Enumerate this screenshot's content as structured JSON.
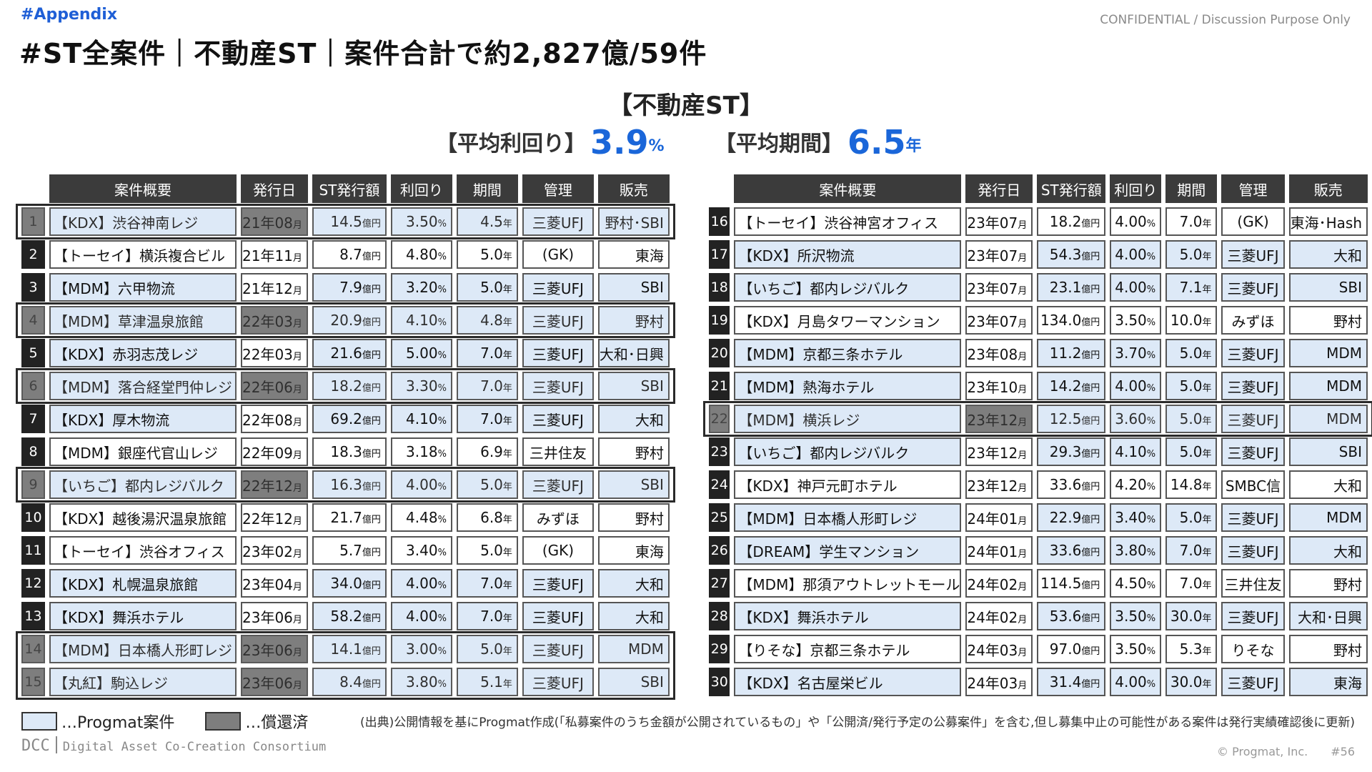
{
  "header": {
    "tag": "#Appendix",
    "confidential": "CONFIDENTIAL / Discussion Purpose Only",
    "title": "#ST全案件｜不動産ST｜案件合計で約2,827億/59件",
    "subtitle": "【不動産ST】",
    "avg_yield_label": "【平均利回り】",
    "avg_yield_value": "3.9",
    "avg_yield_unit": "%",
    "avg_term_label": "【平均期間】",
    "avg_term_value": "6.5",
    "avg_term_unit": "年"
  },
  "columns": [
    "案件概要",
    "発行日",
    "ST発行額",
    "利回り",
    "期間",
    "管理",
    "販売"
  ],
  "units": {
    "month": "月",
    "year": "年",
    "amount": "億円",
    "percent": "%"
  },
  "rows": [
    {
      "no": "1",
      "name": "【KDX】渋谷神南レジ",
      "date": "21年08",
      "amount": "14.5",
      "yield": "3.50",
      "term": "4.5",
      "mgmt": "三菱UFJ",
      "sales": "野村･SBI",
      "progmat": true,
      "redeemed": true
    },
    {
      "no": "2",
      "name": "【トーセイ】横浜複合ビル",
      "date": "21年11",
      "amount": "8.7",
      "yield": "4.80",
      "term": "5.0",
      "mgmt": "(GK)",
      "sales": "東海",
      "progmat": false,
      "redeemed": false
    },
    {
      "no": "3",
      "name": "【MDM】六甲物流",
      "date": "21年12",
      "amount": "7.9",
      "yield": "3.20",
      "term": "5.0",
      "mgmt": "三菱UFJ",
      "sales": "SBI",
      "progmat": true,
      "redeemed": false
    },
    {
      "no": "4",
      "name": "【MDM】草津温泉旅館",
      "date": "22年03",
      "amount": "20.9",
      "yield": "4.10",
      "term": "4.8",
      "mgmt": "三菱UFJ",
      "sales": "野村",
      "progmat": true,
      "redeemed": true
    },
    {
      "no": "5",
      "name": "【KDX】赤羽志茂レジ",
      "date": "22年03",
      "amount": "21.6",
      "yield": "5.00",
      "term": "7.0",
      "mgmt": "三菱UFJ",
      "sales": "大和･日興",
      "progmat": true,
      "redeemed": false
    },
    {
      "no": "6",
      "name": "【MDM】落合経堂門仲レジ",
      "date": "22年06",
      "amount": "18.2",
      "yield": "3.30",
      "term": "7.0",
      "mgmt": "三菱UFJ",
      "sales": "SBI",
      "progmat": true,
      "redeemed": true
    },
    {
      "no": "7",
      "name": "【KDX】厚木物流",
      "date": "22年08",
      "amount": "69.2",
      "yield": "4.10",
      "term": "7.0",
      "mgmt": "三菱UFJ",
      "sales": "大和",
      "progmat": true,
      "redeemed": false
    },
    {
      "no": "8",
      "name": "【MDM】銀座代官山レジ",
      "date": "22年09",
      "amount": "18.3",
      "yield": "3.18",
      "term": "6.9",
      "mgmt": "三井住友",
      "sales": "野村",
      "progmat": false,
      "redeemed": false
    },
    {
      "no": "9",
      "name": "【いちご】都内レジバルク",
      "date": "22年12",
      "amount": "16.3",
      "yield": "4.00",
      "term": "5.0",
      "mgmt": "三菱UFJ",
      "sales": "SBI",
      "progmat": true,
      "redeemed": true
    },
    {
      "no": "10",
      "name": "【KDX】越後湯沢温泉旅館",
      "date": "22年12",
      "amount": "21.7",
      "yield": "4.48",
      "term": "6.8",
      "mgmt": "みずほ",
      "sales": "野村",
      "progmat": false,
      "redeemed": false
    },
    {
      "no": "11",
      "name": "【トーセイ】渋谷オフィス",
      "date": "23年02",
      "amount": "5.7",
      "yield": "3.40",
      "term": "5.0",
      "mgmt": "(GK)",
      "sales": "東海",
      "progmat": false,
      "redeemed": false
    },
    {
      "no": "12",
      "name": "【KDX】札幌温泉旅館",
      "date": "23年04",
      "amount": "34.0",
      "yield": "4.00",
      "term": "7.0",
      "mgmt": "三菱UFJ",
      "sales": "大和",
      "progmat": true,
      "redeemed": false
    },
    {
      "no": "13",
      "name": "【KDX】舞浜ホテル",
      "date": "23年06",
      "amount": "58.2",
      "yield": "4.00",
      "term": "7.0",
      "mgmt": "三菱UFJ",
      "sales": "大和",
      "progmat": true,
      "redeemed": false
    },
    {
      "no": "14",
      "name": "【MDM】日本橋人形町レジ",
      "date": "23年06",
      "amount": "14.1",
      "yield": "3.00",
      "term": "5.0",
      "mgmt": "三菱UFJ",
      "sales": "MDM",
      "progmat": true,
      "redeemed": true
    },
    {
      "no": "15",
      "name": "【丸紅】駒込レジ",
      "date": "23年06",
      "amount": "8.4",
      "yield": "3.80",
      "term": "5.1",
      "mgmt": "三菱UFJ",
      "sales": "SBI",
      "progmat": true,
      "redeemed": true
    },
    {
      "no": "16",
      "name": "【トーセイ】渋谷神宮オフィス",
      "date": "23年07",
      "amount": "18.2",
      "yield": "4.00",
      "term": "7.0",
      "mgmt": "(GK)",
      "sales": "東海･Hash",
      "progmat": false,
      "redeemed": false
    },
    {
      "no": "17",
      "name": "【KDX】所沢物流",
      "date": "23年07",
      "amount": "54.3",
      "yield": "4.00",
      "term": "5.0",
      "mgmt": "三菱UFJ",
      "sales": "大和",
      "progmat": true,
      "redeemed": false
    },
    {
      "no": "18",
      "name": "【いちご】都内レジバルク",
      "date": "23年07",
      "amount": "23.1",
      "yield": "4.00",
      "term": "7.1",
      "mgmt": "三菱UFJ",
      "sales": "SBI",
      "progmat": true,
      "redeemed": false
    },
    {
      "no": "19",
      "name": "【KDX】月島タワーマンション",
      "date": "23年07",
      "amount": "134.0",
      "yield": "3.50",
      "term": "10.0",
      "mgmt": "みずほ",
      "sales": "野村",
      "progmat": false,
      "redeemed": false
    },
    {
      "no": "20",
      "name": "【MDM】京都三条ホテル",
      "date": "23年08",
      "amount": "11.2",
      "yield": "3.70",
      "term": "5.0",
      "mgmt": "三菱UFJ",
      "sales": "MDM",
      "progmat": true,
      "redeemed": false
    },
    {
      "no": "21",
      "name": "【MDM】熱海ホテル",
      "date": "23年10",
      "amount": "14.2",
      "yield": "4.00",
      "term": "5.0",
      "mgmt": "三菱UFJ",
      "sales": "MDM",
      "progmat": true,
      "redeemed": false
    },
    {
      "no": "22",
      "name": "【MDM】横浜レジ",
      "date": "23年12",
      "amount": "12.5",
      "yield": "3.60",
      "term": "5.0",
      "mgmt": "三菱UFJ",
      "sales": "MDM",
      "progmat": true,
      "redeemed": true
    },
    {
      "no": "23",
      "name": "【いちご】都内レジバルク",
      "date": "23年12",
      "amount": "29.3",
      "yield": "4.10",
      "term": "5.0",
      "mgmt": "三菱UFJ",
      "sales": "SBI",
      "progmat": true,
      "redeemed": false
    },
    {
      "no": "24",
      "name": "【KDX】神戸元町ホテル",
      "date": "23年12",
      "amount": "33.6",
      "yield": "4.20",
      "term": "14.8",
      "mgmt": "SMBC信",
      "sales": "大和",
      "progmat": false,
      "redeemed": false
    },
    {
      "no": "25",
      "name": "【MDM】日本橋人形町レジ",
      "date": "24年01",
      "amount": "22.9",
      "yield": "3.40",
      "term": "5.0",
      "mgmt": "三菱UFJ",
      "sales": "MDM",
      "progmat": true,
      "redeemed": false
    },
    {
      "no": "26",
      "name": "【DREAM】学生マンション",
      "date": "24年01",
      "amount": "33.6",
      "yield": "3.80",
      "term": "7.0",
      "mgmt": "三菱UFJ",
      "sales": "大和",
      "progmat": true,
      "redeemed": false
    },
    {
      "no": "27",
      "name": "【MDM】那須アウトレットモール",
      "date": "24年02",
      "amount": "114.5",
      "yield": "4.50",
      "term": "7.0",
      "mgmt": "三井住友",
      "sales": "野村",
      "progmat": false,
      "redeemed": false
    },
    {
      "no": "28",
      "name": "【KDX】舞浜ホテル",
      "date": "24年02",
      "amount": "53.6",
      "yield": "3.50",
      "term": "30.0",
      "mgmt": "三菱UFJ",
      "sales": "大和･日興",
      "progmat": true,
      "redeemed": false
    },
    {
      "no": "29",
      "name": "【りそな】京都三条ホテル",
      "date": "24年03",
      "amount": "97.0",
      "yield": "3.50",
      "term": "5.3",
      "mgmt": "りそな",
      "sales": "野村",
      "progmat": false,
      "redeemed": false
    },
    {
      "no": "30",
      "name": "【KDX】名古屋栄ビル",
      "date": "24年03",
      "amount": "31.4",
      "yield": "4.00",
      "term": "30.0",
      "mgmt": "三菱UFJ",
      "sales": "東海",
      "progmat": true,
      "redeemed": false
    }
  ],
  "legend": {
    "progmat": "…Progmat案件",
    "redeemed": "…償還済"
  },
  "source": "(出典)公開情報を基にProgmat作成(「私募案件のうち金額が公開されているもの」や「公開済/発行予定の公募案件」を含む,但し募集中止の可能性がある案件は発行実績確認後に更新)",
  "footer": {
    "dcc": "DCC",
    "dcc_full": "Digital Asset Co-Creation Consortium",
    "copyright": "© Progmat, Inc.",
    "page": "#56"
  },
  "colors": {
    "accent": "#1a66d9",
    "progmat_fill": "#dde9f7",
    "redeemed_fill": "#7e7e7e",
    "header_fill": "#3b3b3b"
  }
}
